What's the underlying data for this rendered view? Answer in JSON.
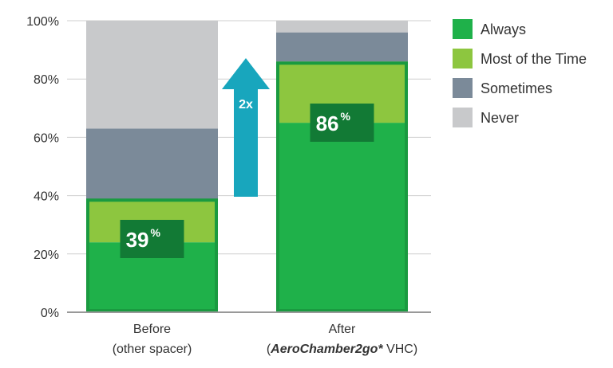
{
  "chart_data": {
    "type": "bar",
    "stacked": true,
    "categories": [
      {
        "line1": "Before",
        "line2": "(other spacer)",
        "line2_prefix": "",
        "line2_italic": "",
        "line2_suffix": ""
      },
      {
        "line1": "After",
        "line2": "",
        "line2_prefix": "(",
        "line2_italic": "AeroChamber2go*",
        "line2_suffix": " VHC)"
      }
    ],
    "series": [
      {
        "name": "Always",
        "color": "#1fb14a",
        "values": [
          24,
          65
        ]
      },
      {
        "name": "Most of the Time",
        "color": "#8dc63f",
        "values": [
          14,
          21
        ]
      },
      {
        "name": "Sometimes",
        "color": "#7b8a99",
        "values": [
          25,
          10
        ]
      },
      {
        "name": "Never",
        "color": "#c8c9cb",
        "values": [
          37,
          4
        ]
      }
    ],
    "highlight_totals": [
      {
        "value": "39",
        "suffix": "%"
      },
      {
        "value": "86",
        "suffix": "%"
      }
    ],
    "highlight_color": "#1a9a40",
    "badge_color": "#127a35",
    "arrow": {
      "label": "2x",
      "color": "#18a6bd"
    },
    "yticks": [
      "0%",
      "20%",
      "40%",
      "60%",
      "80%",
      "100%"
    ],
    "ylim": [
      0,
      100
    ],
    "grid": true,
    "legend": "right",
    "title": "",
    "xlabel": "",
    "ylabel": ""
  }
}
